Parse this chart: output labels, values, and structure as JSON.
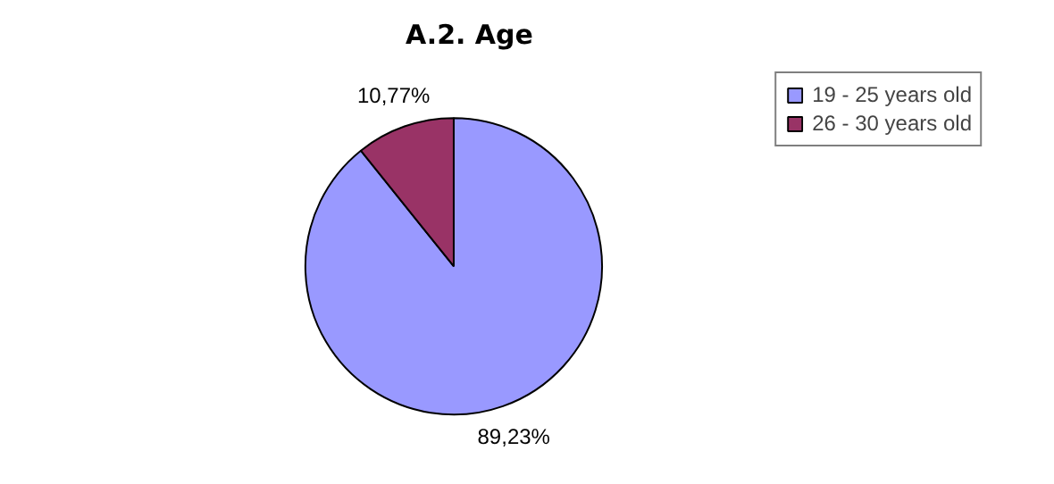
{
  "chart_data": {
    "type": "pie",
    "title": "A.2. Age",
    "categories": [
      "19 - 25 years old",
      "26 - 30 years old"
    ],
    "values": [
      89.23,
      10.77
    ],
    "colors": [
      "#9999ff",
      "#993366"
    ],
    "value_labels": [
      "89,23%",
      "10,77%"
    ],
    "legend": "top right"
  }
}
